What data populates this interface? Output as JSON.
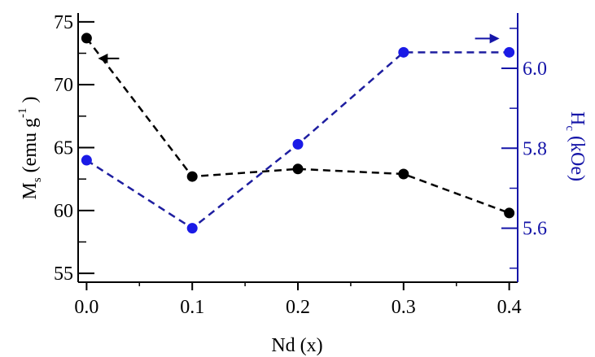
{
  "chart_data": {
    "type": "line",
    "xlabel": "Nd (x)",
    "x": [
      0.0,
      0.1,
      0.2,
      0.3,
      0.4
    ],
    "x_ticks": [
      "0.0",
      "0.1",
      "0.2",
      "0.3",
      "0.4"
    ],
    "xlim": [
      -0.008,
      0.408
    ],
    "left_axis": {
      "label_main": "M",
      "label_sub": "s",
      "label_rest": " (emu g",
      "label_sup": "-1",
      "label_close": ")",
      "ylim": [
        54.3,
        75.7
      ],
      "ticks": [
        "55",
        "60",
        "65",
        "70",
        "75"
      ],
      "tick_values": [
        55,
        60,
        65,
        70,
        75
      ],
      "color": "#000000"
    },
    "right_axis": {
      "label_main": "H",
      "label_sub": "c",
      "label_rest": " (kOe)",
      "ylim": [
        5.465,
        6.1383
      ],
      "ticks": [
        "5.6",
        "5.8",
        "6.0"
      ],
      "tick_values": [
        5.6,
        5.8,
        6.0
      ],
      "color": "#1515a8"
    },
    "series": [
      {
        "axis": "left",
        "color": "#000000",
        "marker_color": "#000000",
        "line_style": "dashed",
        "values": [
          73.7,
          62.7,
          63.3,
          62.9,
          59.8
        ]
      },
      {
        "axis": "right",
        "color": "#1e1ea0",
        "marker_color": "#1a1ae6",
        "line_style": "dashed",
        "values": [
          5.77,
          5.6,
          5.81,
          6.04,
          6.04
        ]
      }
    ],
    "annotations": [
      {
        "type": "arrow",
        "points_to": "left-axis",
        "series": 0
      },
      {
        "type": "arrow",
        "points_to": "right-axis",
        "series": 1
      }
    ]
  }
}
